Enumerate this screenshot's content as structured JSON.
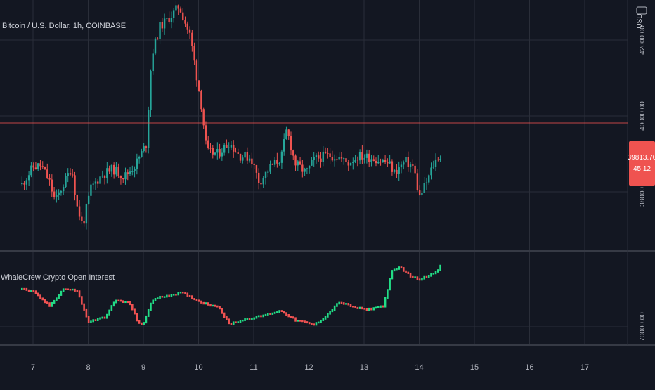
{
  "title": "Bitcoin / U.S. Dollar, 1h, COINBASE",
  "currency": "USD",
  "indicator_title": "WhaleCrew Crypto Open Interest",
  "last_price": "39813.70",
  "countdown": "45:12",
  "colors": {
    "background": "#131722",
    "grid": "#2a2e39",
    "up": "#26a69a",
    "down": "#ef5350",
    "oi_up": "#22dc86",
    "oi_down": "#f05252",
    "price_line": "#ef5350",
    "text": "#b2b5be"
  },
  "chart_data": [
    {
      "type": "candlestick",
      "title": "Bitcoin / U.S. Dollar, 1h, COINBASE",
      "y_ticks": [
        "42000.00",
        "40000.00",
        "38000.00"
      ],
      "x_ticks": [
        "7",
        "8",
        "9",
        "10",
        "11",
        "12",
        "13",
        "14",
        "15",
        "16",
        "17"
      ],
      "close_path": [
        [
          6.8,
          38200
        ],
        [
          7.0,
          38650
        ],
        [
          7.15,
          38700
        ],
        [
          7.3,
          38250
        ],
        [
          7.4,
          37750
        ],
        [
          7.55,
          38200
        ],
        [
          7.7,
          38650
        ],
        [
          7.8,
          37600
        ],
        [
          7.9,
          37100
        ],
        [
          8.05,
          38100
        ],
        [
          8.25,
          38450
        ],
        [
          8.45,
          38600
        ],
        [
          8.65,
          38400
        ],
        [
          8.85,
          38700
        ],
        [
          9.05,
          39250
        ],
        [
          9.15,
          41600
        ],
        [
          9.3,
          42350
        ],
        [
          9.45,
          42550
        ],
        [
          9.65,
          42900
        ],
        [
          9.85,
          42100
        ],
        [
          10.05,
          40300
        ],
        [
          10.15,
          39050
        ],
        [
          10.35,
          39000
        ],
        [
          10.55,
          39300
        ],
        [
          10.75,
          38950
        ],
        [
          10.95,
          38900
        ],
        [
          11.1,
          38250
        ],
        [
          11.3,
          38650
        ],
        [
          11.5,
          38900
        ],
        [
          11.6,
          39650
        ],
        [
          11.75,
          38750
        ],
        [
          11.95,
          38500
        ],
        [
          12.1,
          38850
        ],
        [
          12.3,
          38950
        ],
        [
          12.5,
          38950
        ],
        [
          12.7,
          38750
        ],
        [
          12.9,
          38950
        ],
        [
          13.15,
          38900
        ],
        [
          13.45,
          38750
        ],
        [
          13.55,
          38500
        ],
        [
          13.75,
          38800
        ],
        [
          13.9,
          38650
        ],
        [
          14.0,
          37850
        ],
        [
          14.15,
          38300
        ],
        [
          14.25,
          38700
        ],
        [
          14.35,
          38950
        ],
        [
          14.4,
          38900
        ]
      ]
    },
    {
      "type": "bar",
      "title": "WhaleCrew Crypto Open Interest",
      "y_ticks": [
        "70000.00"
      ],
      "close_path": [
        [
          6.8,
          74000
        ],
        [
          7.0,
          73700
        ],
        [
          7.3,
          72200
        ],
        [
          7.55,
          74000
        ],
        [
          7.8,
          73800
        ],
        [
          8.0,
          70500
        ],
        [
          8.3,
          71000
        ],
        [
          8.5,
          72800
        ],
        [
          8.75,
          72500
        ],
        [
          8.9,
          70500
        ],
        [
          9.0,
          70200
        ],
        [
          9.15,
          72800
        ],
        [
          9.35,
          73200
        ],
        [
          9.7,
          73600
        ],
        [
          10.0,
          72700
        ],
        [
          10.2,
          72300
        ],
        [
          10.35,
          72200
        ],
        [
          10.55,
          70300
        ],
        [
          10.85,
          70800
        ],
        [
          11.05,
          71000
        ],
        [
          11.3,
          71400
        ],
        [
          11.5,
          71700
        ],
        [
          11.75,
          70700
        ],
        [
          12.1,
          70200
        ],
        [
          12.3,
          71100
        ],
        [
          12.55,
          72600
        ],
        [
          12.85,
          72000
        ],
        [
          13.05,
          71800
        ],
        [
          13.35,
          72200
        ],
        [
          13.5,
          75800
        ],
        [
          13.65,
          76300
        ],
        [
          13.85,
          75300
        ],
        [
          14.0,
          75000
        ],
        [
          14.15,
          75400
        ],
        [
          14.3,
          75700
        ],
        [
          14.4,
          76500
        ]
      ]
    }
  ]
}
